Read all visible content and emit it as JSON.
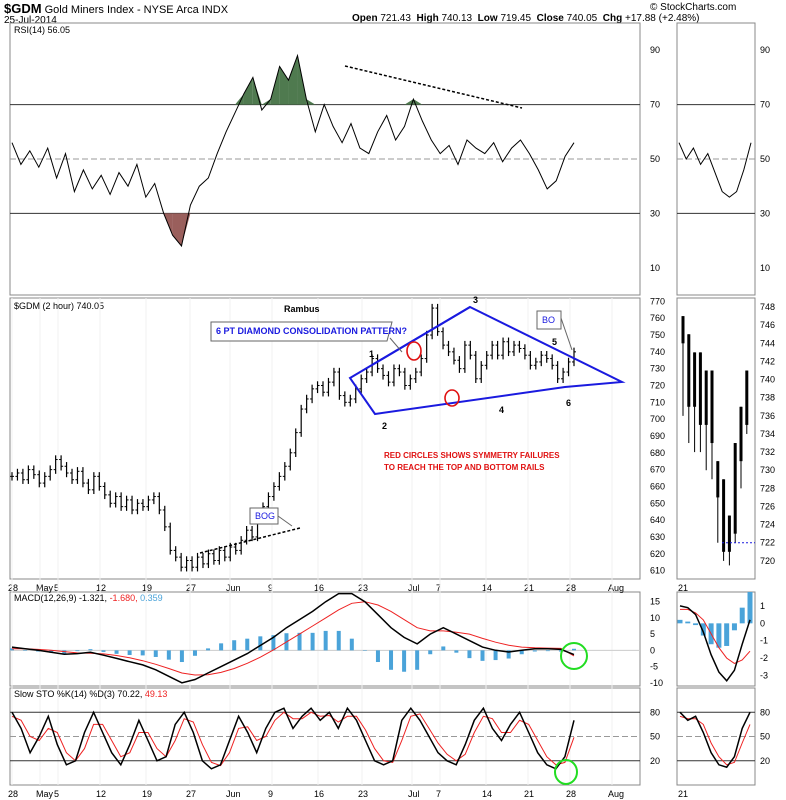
{
  "header": {
    "symbol": "$GDM",
    "name": "Gold Miners Index - NYSE Arca",
    "exchange_tag": "INDX",
    "date": "25-Jul-2014",
    "open_label": "Open",
    "open": "721.43",
    "high_label": "High",
    "high": "740.13",
    "low_label": "Low",
    "low": "719.45",
    "close_label": "Close",
    "close": "740.05",
    "chg_label": "Chg",
    "chg": "+17.88 (+2.48%)",
    "watermark": "© StockCharts.com"
  },
  "colors": {
    "price": "#000000",
    "trend_blue": "#1a1adf",
    "annot_red": "#e01010",
    "circle_green": "#22dd22",
    "histogram": "#4aa3d9",
    "rsi_green": "#4f7a4f",
    "rsi_red": "#9a5f5c",
    "signal_red": "#ee2222",
    "grid": "#cccccc"
  },
  "chart_data": [
    {
      "panel": "rsi",
      "type": "line",
      "label": "RSI(14) 56.05",
      "ylim": [
        0,
        100
      ],
      "levels": [
        30,
        50,
        70
      ],
      "yticks": [
        "90",
        "70",
        "50",
        "30",
        "10"
      ],
      "series": [
        {
          "name": "RSI(14)",
          "values": [
            56,
            48,
            53,
            47,
            54,
            43,
            52,
            38,
            46,
            39,
            44,
            37,
            45,
            40,
            48,
            36,
            41,
            30,
            22,
            18,
            33,
            40,
            43,
            52,
            60,
            67,
            74,
            80,
            68,
            72,
            84,
            79,
            88,
            72,
            60,
            70,
            62,
            56,
            63,
            54,
            52,
            60,
            66,
            57,
            62,
            72,
            64,
            57,
            52,
            55,
            48,
            57,
            54,
            52,
            56,
            49,
            54,
            57,
            52,
            46,
            39,
            42,
            51,
            56
          ]
        }
      ],
      "side_panel": {
        "yticks": [
          "90",
          "70",
          "50",
          "30",
          "10"
        ],
        "values": [
          56,
          50,
          54,
          48,
          52,
          45,
          38,
          36,
          38,
          46,
          56
        ]
      }
    },
    {
      "panel": "price",
      "type": "ohlc",
      "label": "$GDM (2 hour) 740.05",
      "ylim": [
        605,
        772
      ],
      "yticks": [
        "770",
        "760",
        "750",
        "740",
        "730",
        "720",
        "710",
        "700",
        "690",
        "680",
        "670",
        "660",
        "650",
        "640",
        "630",
        "620",
        "610"
      ],
      "xticks": [
        "28",
        "May",
        "5",
        "12",
        "19",
        "27",
        "Jun",
        "9",
        "16",
        "23",
        "Jul",
        "7",
        "14",
        "21",
        "28",
        "Aug"
      ],
      "values": [
        666,
        668,
        664,
        670,
        667,
        662,
        666,
        670,
        676,
        672,
        668,
        664,
        669,
        662,
        658,
        666,
        660,
        655,
        650,
        654,
        648,
        652,
        646,
        650,
        648,
        652,
        654,
        646,
        636,
        622,
        618,
        612,
        616,
        612,
        618,
        614,
        620,
        616,
        622,
        618,
        624,
        622,
        628,
        634,
        630,
        640,
        648,
        654,
        660,
        666,
        672,
        680,
        692,
        706,
        712,
        718,
        720,
        716,
        722,
        728,
        714,
        710,
        712,
        718,
        724,
        728,
        736,
        730,
        726,
        722,
        730,
        728,
        720,
        724,
        728,
        736,
        750,
        766,
        752,
        744,
        740,
        735,
        730,
        744,
        738,
        724,
        732,
        738,
        744,
        738,
        746,
        740,
        744,
        742,
        738,
        732,
        734,
        738,
        736,
        732,
        724,
        728,
        734,
        740
      ],
      "side_panel": {
        "ylim": [
          718,
          749
        ],
        "yticks": [
          "748",
          "746",
          "744",
          "742",
          "740",
          "738",
          "736",
          "734",
          "732",
          "730",
          "728",
          "726",
          "724",
          "722",
          "720"
        ],
        "xtick": "21"
      },
      "annotations": {
        "title": "Rambus",
        "pattern": "6 PT DIAMOND CONSOLIDATION PATTERN?",
        "note_line1": "RED CIRCLES SHOWS SYMMETRY FAILURES",
        "note_line2": "TO REACH THE TOP AND BOTTOM RAILS",
        "bog": "BOG",
        "bo": "BO",
        "points": [
          "1",
          "2",
          "3",
          "4",
          "5",
          "6"
        ]
      }
    },
    {
      "panel": "macd",
      "type": "line",
      "label_prefix": "MACD(12,26,9)",
      "macd_value": "-1.321",
      "signal_value": "-1.680",
      "hist_value": "0.359",
      "ylim": [
        -11,
        18
      ],
      "yticks": [
        "15",
        "10",
        "5",
        "0",
        "-5",
        "-10"
      ],
      "series": [
        {
          "name": "MACD",
          "values": [
            1,
            0.5,
            0,
            -0.6,
            -1.2,
            -1,
            -0.6,
            -1.5,
            -2.5,
            -3.5,
            -4.5,
            -6,
            -8,
            -10,
            -9,
            -7,
            -5,
            -3,
            -1,
            1.5,
            4,
            7,
            9.5,
            12,
            15,
            17.5,
            17.5,
            15,
            11,
            7,
            4,
            2,
            5,
            7,
            5,
            3,
            1,
            0,
            -0.5,
            0,
            0.5,
            0.5,
            0.3,
            -1.3
          ]
        },
        {
          "name": "Signal",
          "values": [
            0.5,
            0.5,
            0.3,
            0,
            -0.4,
            -0.8,
            -0.9,
            -1.1,
            -1.6,
            -2.3,
            -3.2,
            -4.3,
            -5.6,
            -7,
            -7.6,
            -7.5,
            -6.8,
            -5.6,
            -4,
            -2.1,
            0.1,
            2.6,
            5,
            7.5,
            10,
            12.5,
            14.5,
            15,
            14,
            12,
            9.5,
            7,
            6,
            6,
            5.6,
            5,
            3.7,
            2.5,
            1.6,
            1,
            0.8,
            0.7,
            0.6,
            -1.7
          ]
        }
      ],
      "side_panel": {
        "yticks": [
          "1",
          "0",
          "-1",
          "-2",
          "-3"
        ],
        "macd": [
          1,
          0.9,
          0.5,
          -0.5,
          -1.8,
          -2.8,
          -3.3,
          -2.7,
          -1.2,
          0.2
        ],
        "signal": [
          0.8,
          0.8,
          0.6,
          0.2,
          -0.6,
          -1.4,
          -2,
          -2.3,
          -2.1,
          -1.6
        ]
      }
    },
    {
      "panel": "stoch",
      "type": "line",
      "label_prefix": "Slow STO %K(14) %D(3)",
      "k_value": "70.22",
      "d_value": "49.13",
      "ylim": [
        0,
        100
      ],
      "levels": [
        20,
        50,
        80
      ],
      "yticks": [
        "80",
        "50",
        "20"
      ],
      "series": [
        {
          "name": "%K",
          "values": [
            80,
            60,
            30,
            50,
            75,
            40,
            15,
            20,
            55,
            80,
            55,
            30,
            15,
            40,
            70,
            45,
            20,
            25,
            65,
            80,
            55,
            20,
            10,
            15,
            45,
            75,
            55,
            30,
            60,
            80,
            85,
            60,
            75,
            85,
            70,
            80,
            60,
            85,
            70,
            45,
            20,
            15,
            20,
            70,
            85,
            70,
            50,
            30,
            20,
            15,
            40,
            70,
            85,
            60,
            45,
            65,
            80,
            55,
            30,
            15,
            10,
            25,
            70
          ]
        },
        {
          "name": "%D",
          "values": [
            75,
            70,
            50,
            45,
            60,
            55,
            30,
            20,
            35,
            65,
            65,
            45,
            25,
            30,
            55,
            55,
            35,
            25,
            45,
            72,
            68,
            40,
            18,
            14,
            30,
            60,
            62,
            45,
            50,
            70,
            80,
            72,
            72,
            80,
            75,
            76,
            68,
            75,
            75,
            58,
            35,
            20,
            18,
            45,
            75,
            78,
            60,
            42,
            28,
            20,
            28,
            55,
            75,
            72,
            55,
            55,
            70,
            65,
            45,
            25,
            15,
            18,
            49
          ]
        }
      ],
      "side_panel": {
        "yticks": [
          "80",
          "50",
          "20"
        ],
        "k": [
          80,
          70,
          75,
          55,
          30,
          15,
          12,
          25,
          60,
          80
        ],
        "d": [
          75,
          72,
          72,
          65,
          42,
          25,
          15,
          18,
          42,
          65
        ]
      }
    }
  ]
}
